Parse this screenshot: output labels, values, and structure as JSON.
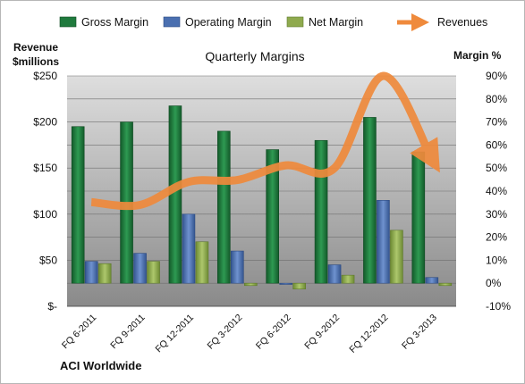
{
  "chart_data": {
    "type": "bar",
    "title": "Quarterly Margins",
    "company": "ACI Worldwide",
    "left_axis_title": [
      "Revenue",
      "$millions"
    ],
    "right_axis_title": "Margin %",
    "left_ticks": [
      "$-",
      "$50",
      "$100",
      "$150",
      "$200",
      "$250"
    ],
    "right_ticks": [
      "-10%",
      "0%",
      "10%",
      "20%",
      "30%",
      "40%",
      "50%",
      "60%",
      "70%",
      "80%",
      "90%"
    ],
    "ylim_margin": [
      -10,
      90
    ],
    "ylim_revenue": [
      0,
      250
    ],
    "categories": [
      "FQ 6-2011",
      "FQ 9-2011",
      "FQ 12-2011",
      "FQ 3-2012",
      "FQ 6-2012",
      "FQ 9-2012",
      "FQ 12-2012",
      "FQ 3-2013"
    ],
    "series": [
      {
        "name": "Gross Margin",
        "axis": "right",
        "kind": "bar",
        "values": [
          68,
          70,
          77,
          66,
          58,
          62,
          72,
          57
        ]
      },
      {
        "name": "Operating Margin",
        "axis": "right",
        "kind": "bar",
        "values": [
          9.5,
          13,
          30,
          14,
          -0.5,
          8,
          36,
          2.5
        ]
      },
      {
        "name": "Net Margin",
        "axis": "right",
        "kind": "bar",
        "values": [
          8.5,
          9.5,
          18,
          -1,
          -2.5,
          3.5,
          23,
          -1
        ]
      },
      {
        "name": "Revenues",
        "axis": "left",
        "kind": "line",
        "values": [
          113,
          110,
          135,
          137,
          153,
          150,
          250,
          160
        ]
      }
    ],
    "colors": {
      "gross": "#1f7a3d",
      "operating": "#4a6fb0",
      "net": "#8faa4e",
      "revenue": "#ef8a3c",
      "plot_top": "#dedede",
      "plot_bottom": "#8a8a8a"
    },
    "legend_position": "top",
    "grid": true
  }
}
